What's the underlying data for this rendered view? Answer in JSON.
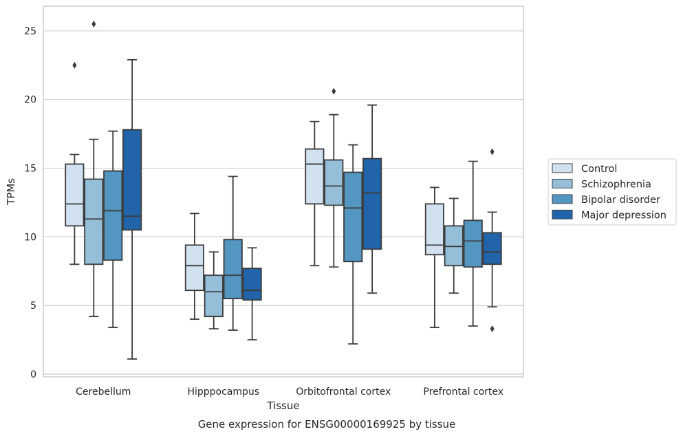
{
  "chart_data": {
    "type": "box",
    "caption": "Gene expression for ENSG00000169925 by tissue",
    "xlabel": "Tissue",
    "ylabel": "TPMs",
    "ylim": [
      -0.2,
      26.8
    ],
    "yticks": [
      0,
      5,
      10,
      15,
      20,
      25
    ],
    "grid": "horizontal",
    "legend_position": "right",
    "categories": [
      "Cerebellum",
      "Hipppocampus",
      "Orbitofrontal cortex",
      "Prefrontal cortex"
    ],
    "series": [
      {
        "name": "Control",
        "color": "#d1e1f0",
        "boxes": [
          {
            "whislo": 8.0,
            "q1": 10.8,
            "med": 12.4,
            "q3": 15.3,
            "whishi": 16.0,
            "fliers": [
              22.5
            ]
          },
          {
            "whislo": 4.0,
            "q1": 6.1,
            "med": 7.9,
            "q3": 9.4,
            "whishi": 11.7,
            "fliers": []
          },
          {
            "whislo": 7.9,
            "q1": 12.4,
            "med": 15.3,
            "q3": 16.4,
            "whishi": 18.4,
            "fliers": []
          },
          {
            "whislo": 3.4,
            "q1": 8.7,
            "med": 9.4,
            "q3": 12.4,
            "whishi": 13.6,
            "fliers": []
          }
        ]
      },
      {
        "name": "Schizophrenia",
        "color": "#95bfd9",
        "boxes": [
          {
            "whislo": 4.2,
            "q1": 8.0,
            "med": 11.3,
            "q3": 14.2,
            "whishi": 17.1,
            "fliers": [
              25.5
            ]
          },
          {
            "whislo": 3.3,
            "q1": 4.2,
            "med": 6.0,
            "q3": 7.2,
            "whishi": 8.9,
            "fliers": []
          },
          {
            "whislo": 7.8,
            "q1": 12.3,
            "med": 13.7,
            "q3": 15.6,
            "whishi": 18.9,
            "fliers": [
              20.6
            ]
          },
          {
            "whislo": 5.9,
            "q1": 7.9,
            "med": 9.3,
            "q3": 10.8,
            "whishi": 12.8,
            "fliers": []
          }
        ]
      },
      {
        "name": "Bipolar disorder",
        "color": "#5496c2",
        "boxes": [
          {
            "whislo": 3.4,
            "q1": 8.3,
            "med": 11.9,
            "q3": 14.8,
            "whishi": 17.7,
            "fliers": []
          },
          {
            "whislo": 3.2,
            "q1": 5.5,
            "med": 7.2,
            "q3": 9.8,
            "whishi": 14.4,
            "fliers": []
          },
          {
            "whislo": 2.2,
            "q1": 8.2,
            "med": 12.1,
            "q3": 14.7,
            "whishi": 16.7,
            "fliers": []
          },
          {
            "whislo": 3.5,
            "q1": 7.8,
            "med": 9.7,
            "q3": 11.2,
            "whishi": 15.5,
            "fliers": []
          }
        ]
      },
      {
        "name": "Major depression",
        "color": "#2264a9",
        "boxes": [
          {
            "whislo": 1.1,
            "q1": 10.5,
            "med": 11.5,
            "q3": 17.8,
            "whishi": 22.9,
            "fliers": []
          },
          {
            "whislo": 2.5,
            "q1": 5.4,
            "med": 6.1,
            "q3": 7.7,
            "whishi": 9.2,
            "fliers": []
          },
          {
            "whislo": 5.9,
            "q1": 9.1,
            "med": 13.2,
            "q3": 15.7,
            "whishi": 19.6,
            "fliers": []
          },
          {
            "whislo": 4.9,
            "q1": 8.0,
            "med": 8.9,
            "q3": 10.3,
            "whishi": 11.8,
            "fliers": [
              3.3,
              16.2
            ]
          }
        ]
      }
    ]
  }
}
